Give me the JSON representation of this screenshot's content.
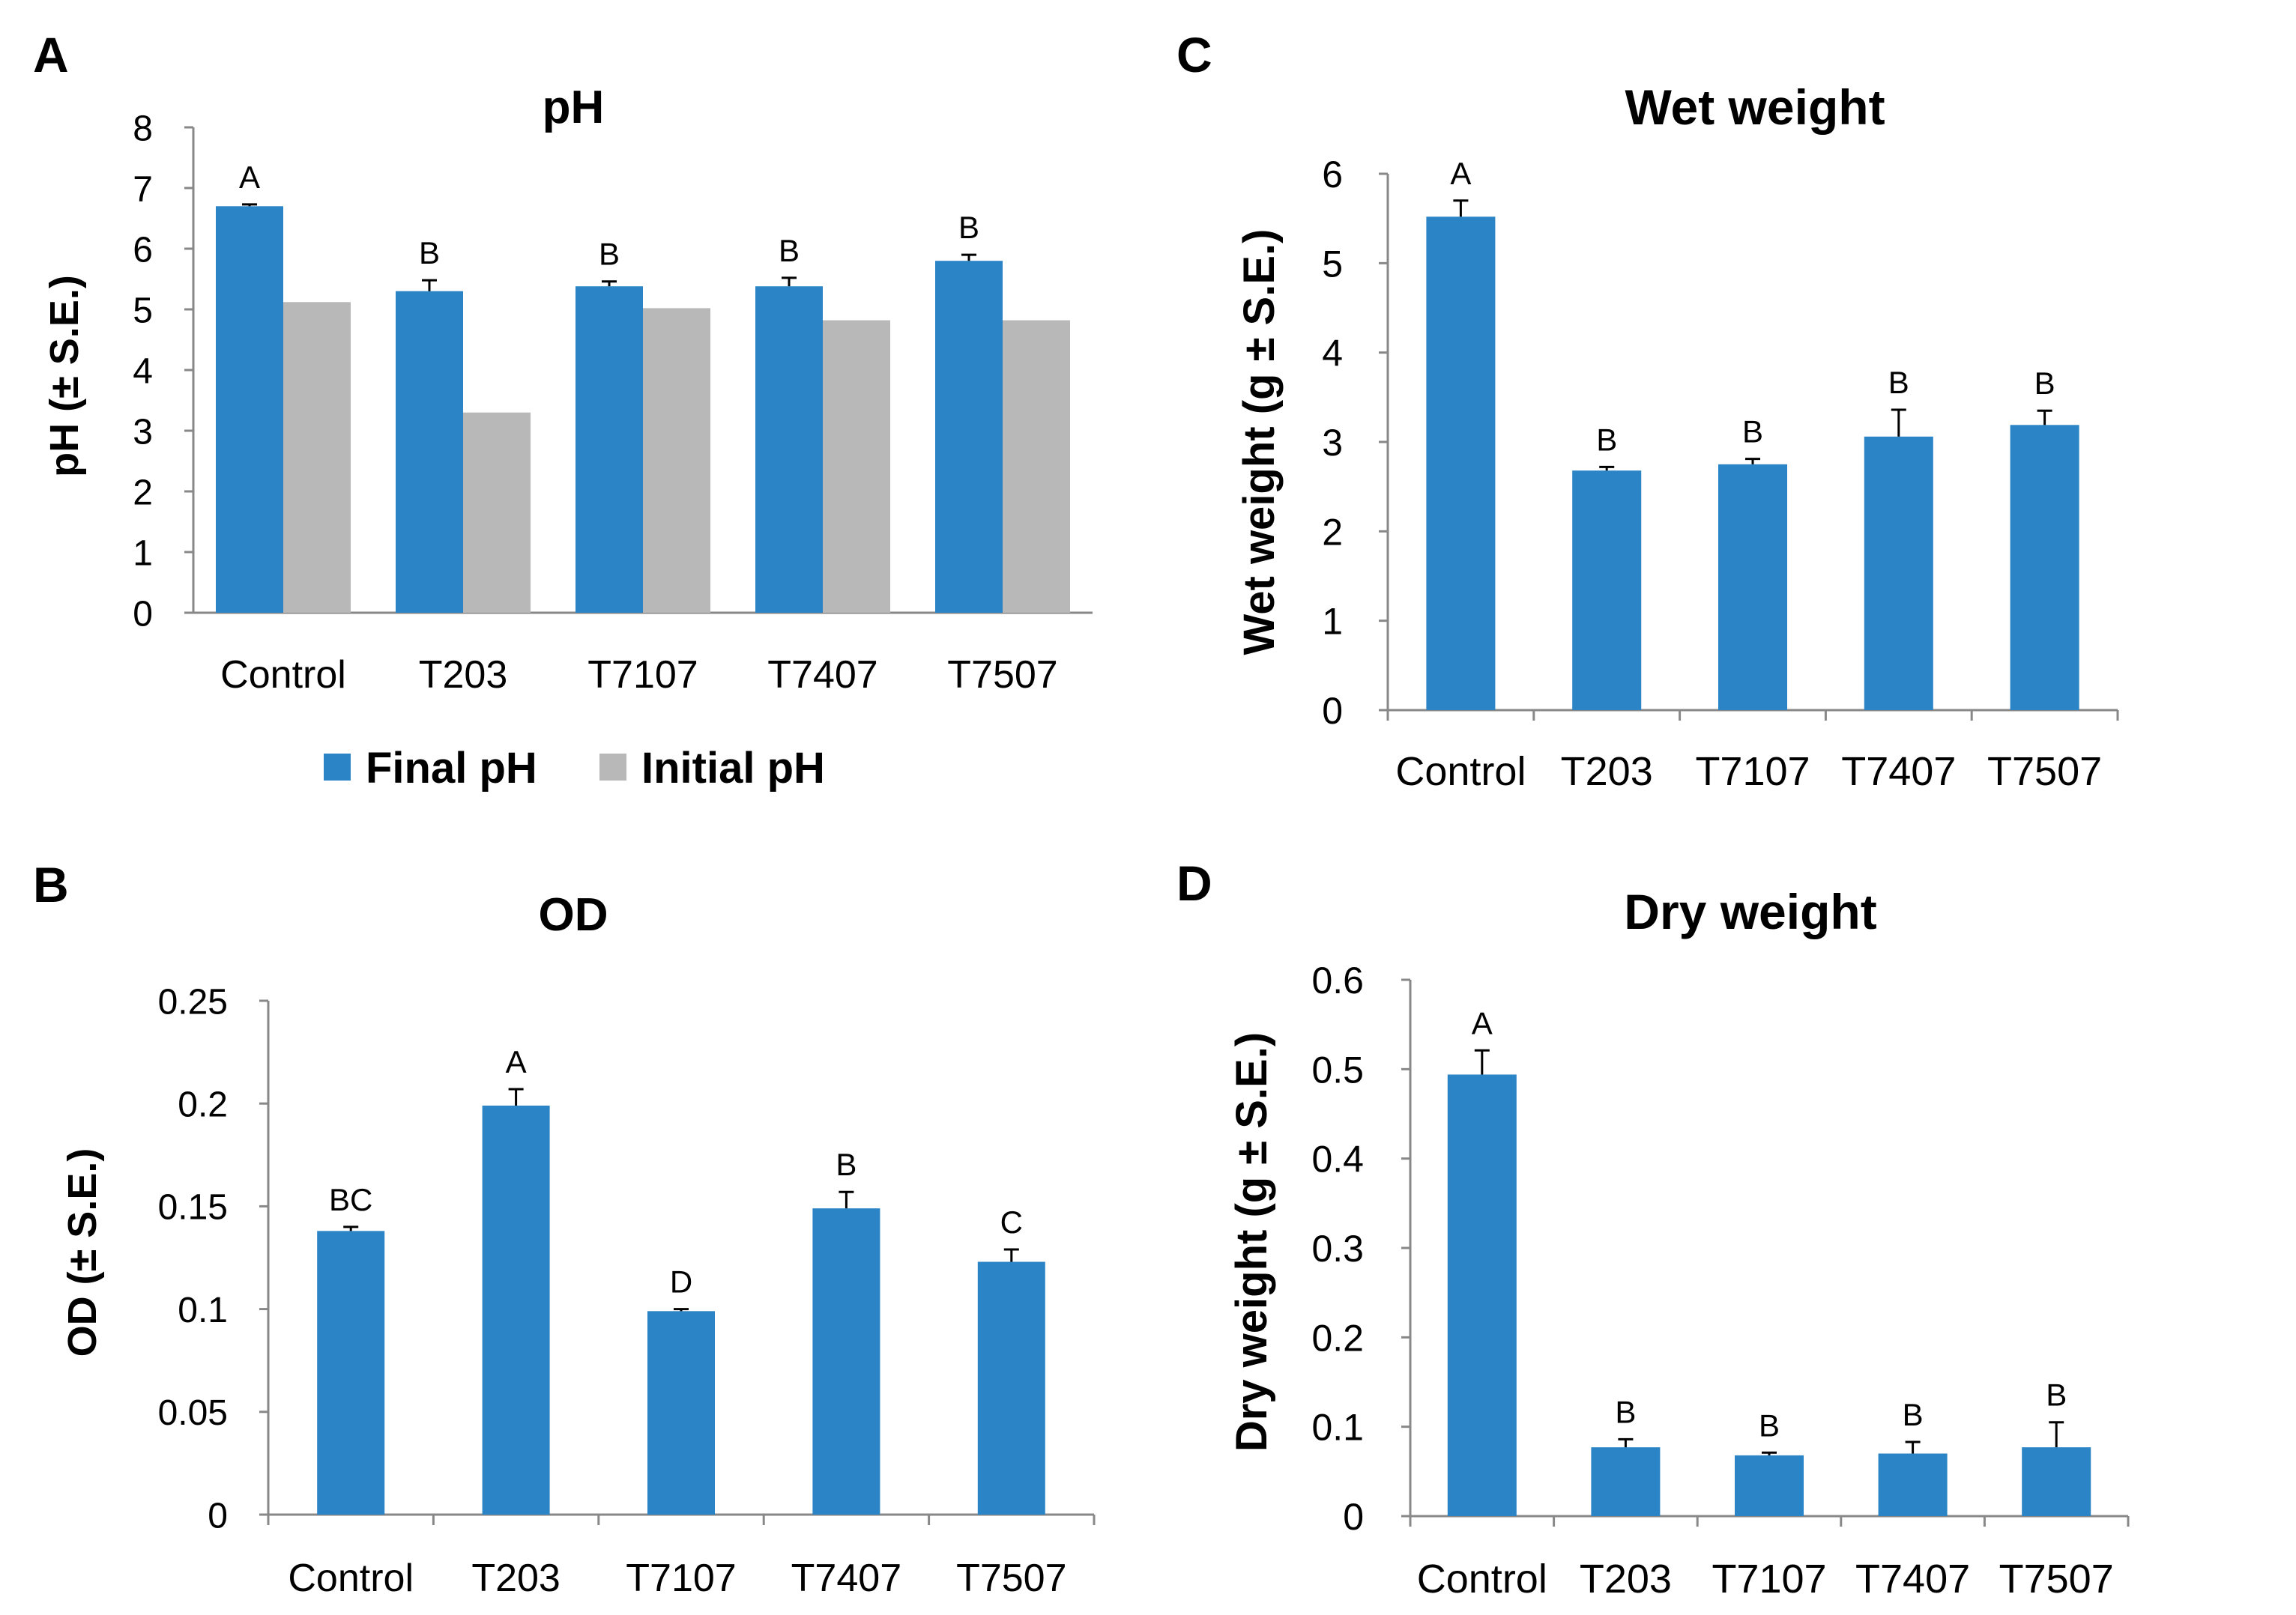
{
  "colors": {
    "final": "#2A84C6",
    "initial": "#B8B8B8",
    "axis": "#888888",
    "text": "#000000"
  },
  "chart_data": [
    {
      "panel": "A",
      "type": "bar",
      "title": "pH",
      "xlabel": "",
      "ylabel": "pH (± S.E.)",
      "ylim": [
        0,
        8
      ],
      "yticks": [
        "0",
        "1",
        "2",
        "3",
        "4",
        "5",
        "6",
        "7",
        "8"
      ],
      "categories": [
        "Control",
        "T203",
        "T7107",
        "T7407",
        "T7507"
      ],
      "series": [
        {
          "name": "Final pH",
          "color": "#2A84C6",
          "values": [
            6.7,
            5.3,
            5.38,
            5.38,
            5.8
          ],
          "errors": [
            0.03,
            0.18,
            0.08,
            0.14,
            0.1
          ]
        },
        {
          "name": "Initial pH",
          "color": "#B8B8B8",
          "values": [
            5.12,
            3.3,
            5.02,
            4.82,
            4.82
          ],
          "errors": null
        }
      ],
      "letters": [
        "A",
        "B",
        "B",
        "B",
        "B"
      ],
      "legend": "bottom",
      "category_ticks": false
    },
    {
      "panel": "B",
      "type": "bar",
      "title": "OD",
      "xlabel": "",
      "ylabel": "OD (± S.E.)",
      "ylim": [
        0,
        0.25
      ],
      "yticks": [
        "0",
        "0.05",
        "0.1",
        "0.15",
        "0.2",
        "0.25"
      ],
      "categories": [
        "Control",
        "T203",
        "T7107",
        "T7407",
        "T7507"
      ],
      "series": [
        {
          "name": "OD",
          "color": "#2A84C6",
          "values": [
            0.138,
            0.199,
            0.099,
            0.149,
            0.123
          ],
          "errors": [
            0.002,
            0.008,
            0.001,
            0.008,
            0.006
          ]
        }
      ],
      "letters": [
        "BC",
        "A",
        "D",
        "B",
        "C"
      ],
      "legend": "none",
      "category_ticks": true
    },
    {
      "panel": "C",
      "type": "bar",
      "title": "Wet weight",
      "xlabel": "",
      "ylabel": "Wet weight (g ± S.E.)",
      "ylim": [
        0,
        6
      ],
      "yticks": [
        "0",
        "1",
        "2",
        "3",
        "4",
        "5",
        "6"
      ],
      "categories": [
        "Control",
        "T203",
        "T7107",
        "T7407",
        "T7507"
      ],
      "series": [
        {
          "name": "Wet weight",
          "color": "#2A84C6",
          "values": [
            5.52,
            2.68,
            2.75,
            3.06,
            3.19
          ],
          "errors": [
            0.18,
            0.04,
            0.06,
            0.3,
            0.16
          ]
        }
      ],
      "letters": [
        "A",
        "B",
        "B",
        "B",
        "B"
      ],
      "legend": "none",
      "category_ticks": true
    },
    {
      "panel": "D",
      "type": "bar",
      "title": "Dry weight",
      "xlabel": "",
      "ylabel": "Dry weight (g ± S.E.)",
      "ylim": [
        0,
        0.6
      ],
      "yticks": [
        "0",
        "0.1",
        "0.2",
        "0.3",
        "0.4",
        "0.5",
        "0.6"
      ],
      "categories": [
        "Control",
        "T203",
        "T7107",
        "T7407",
        "T7507"
      ],
      "series": [
        {
          "name": "Dry weight",
          "color": "#2A84C6",
          "values": [
            0.494,
            0.077,
            0.068,
            0.07,
            0.077
          ],
          "errors": [
            0.027,
            0.009,
            0.003,
            0.013,
            0.028
          ]
        }
      ],
      "letters": [
        "A",
        "B",
        "B",
        "B",
        "B"
      ],
      "legend": "none",
      "category_ticks": true
    }
  ]
}
